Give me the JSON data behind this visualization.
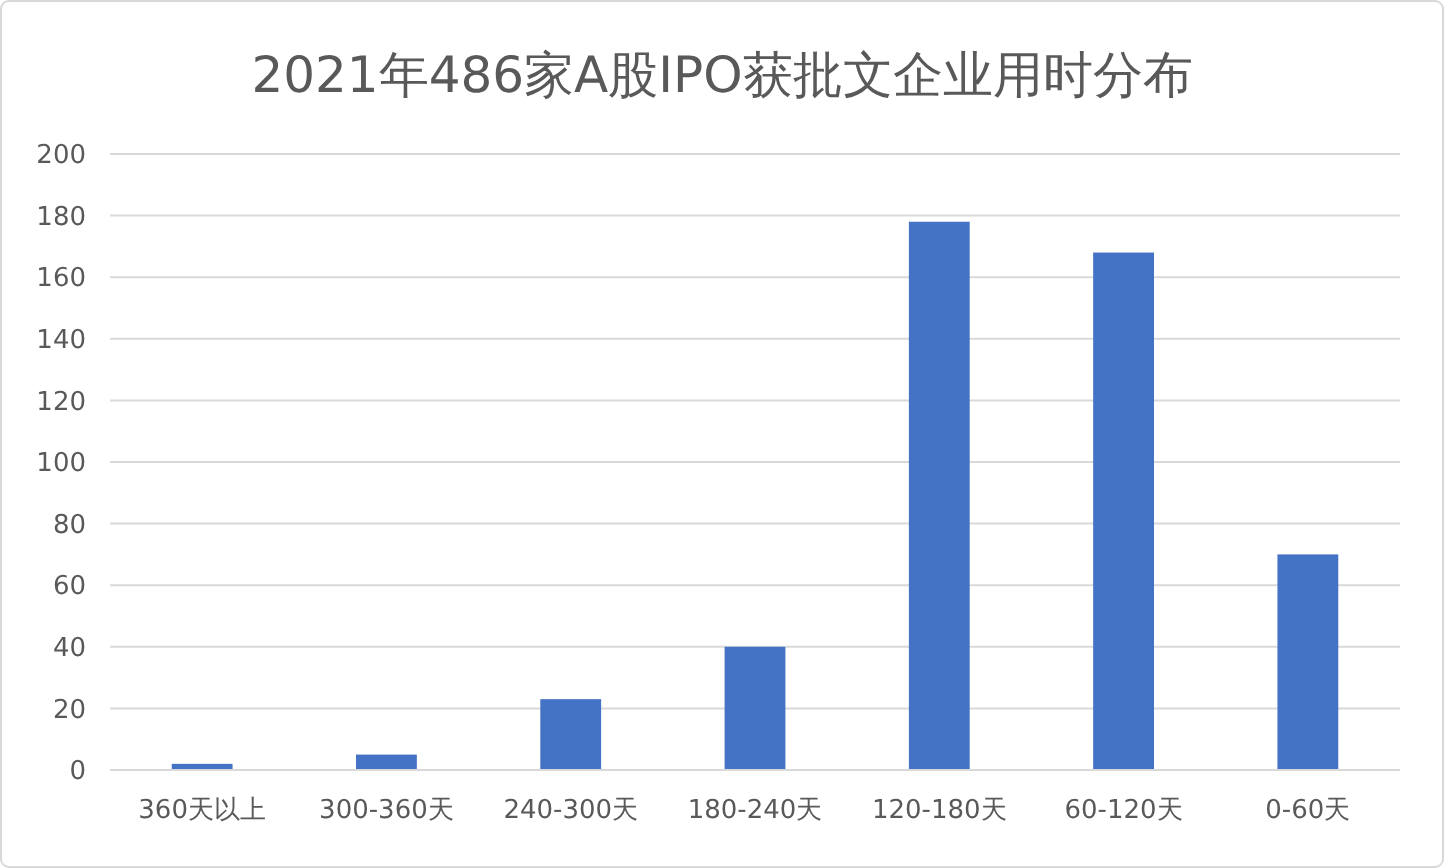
{
  "chart_data": {
    "type": "bar",
    "title": "2021年486家A股IPO获批文企业用时分布",
    "categories": [
      "360天以上",
      "300-360天",
      "240-300天",
      "180-240天",
      "120-180天",
      "60-120天",
      "0-60天"
    ],
    "values": [
      2,
      5,
      23,
      40,
      178,
      168,
      70
    ],
    "color": "#4472c4",
    "ylim": [
      0,
      200
    ],
    "yticks": [
      0,
      20,
      40,
      60,
      80,
      100,
      120,
      140,
      160,
      180,
      200
    ],
    "grid": "y"
  }
}
